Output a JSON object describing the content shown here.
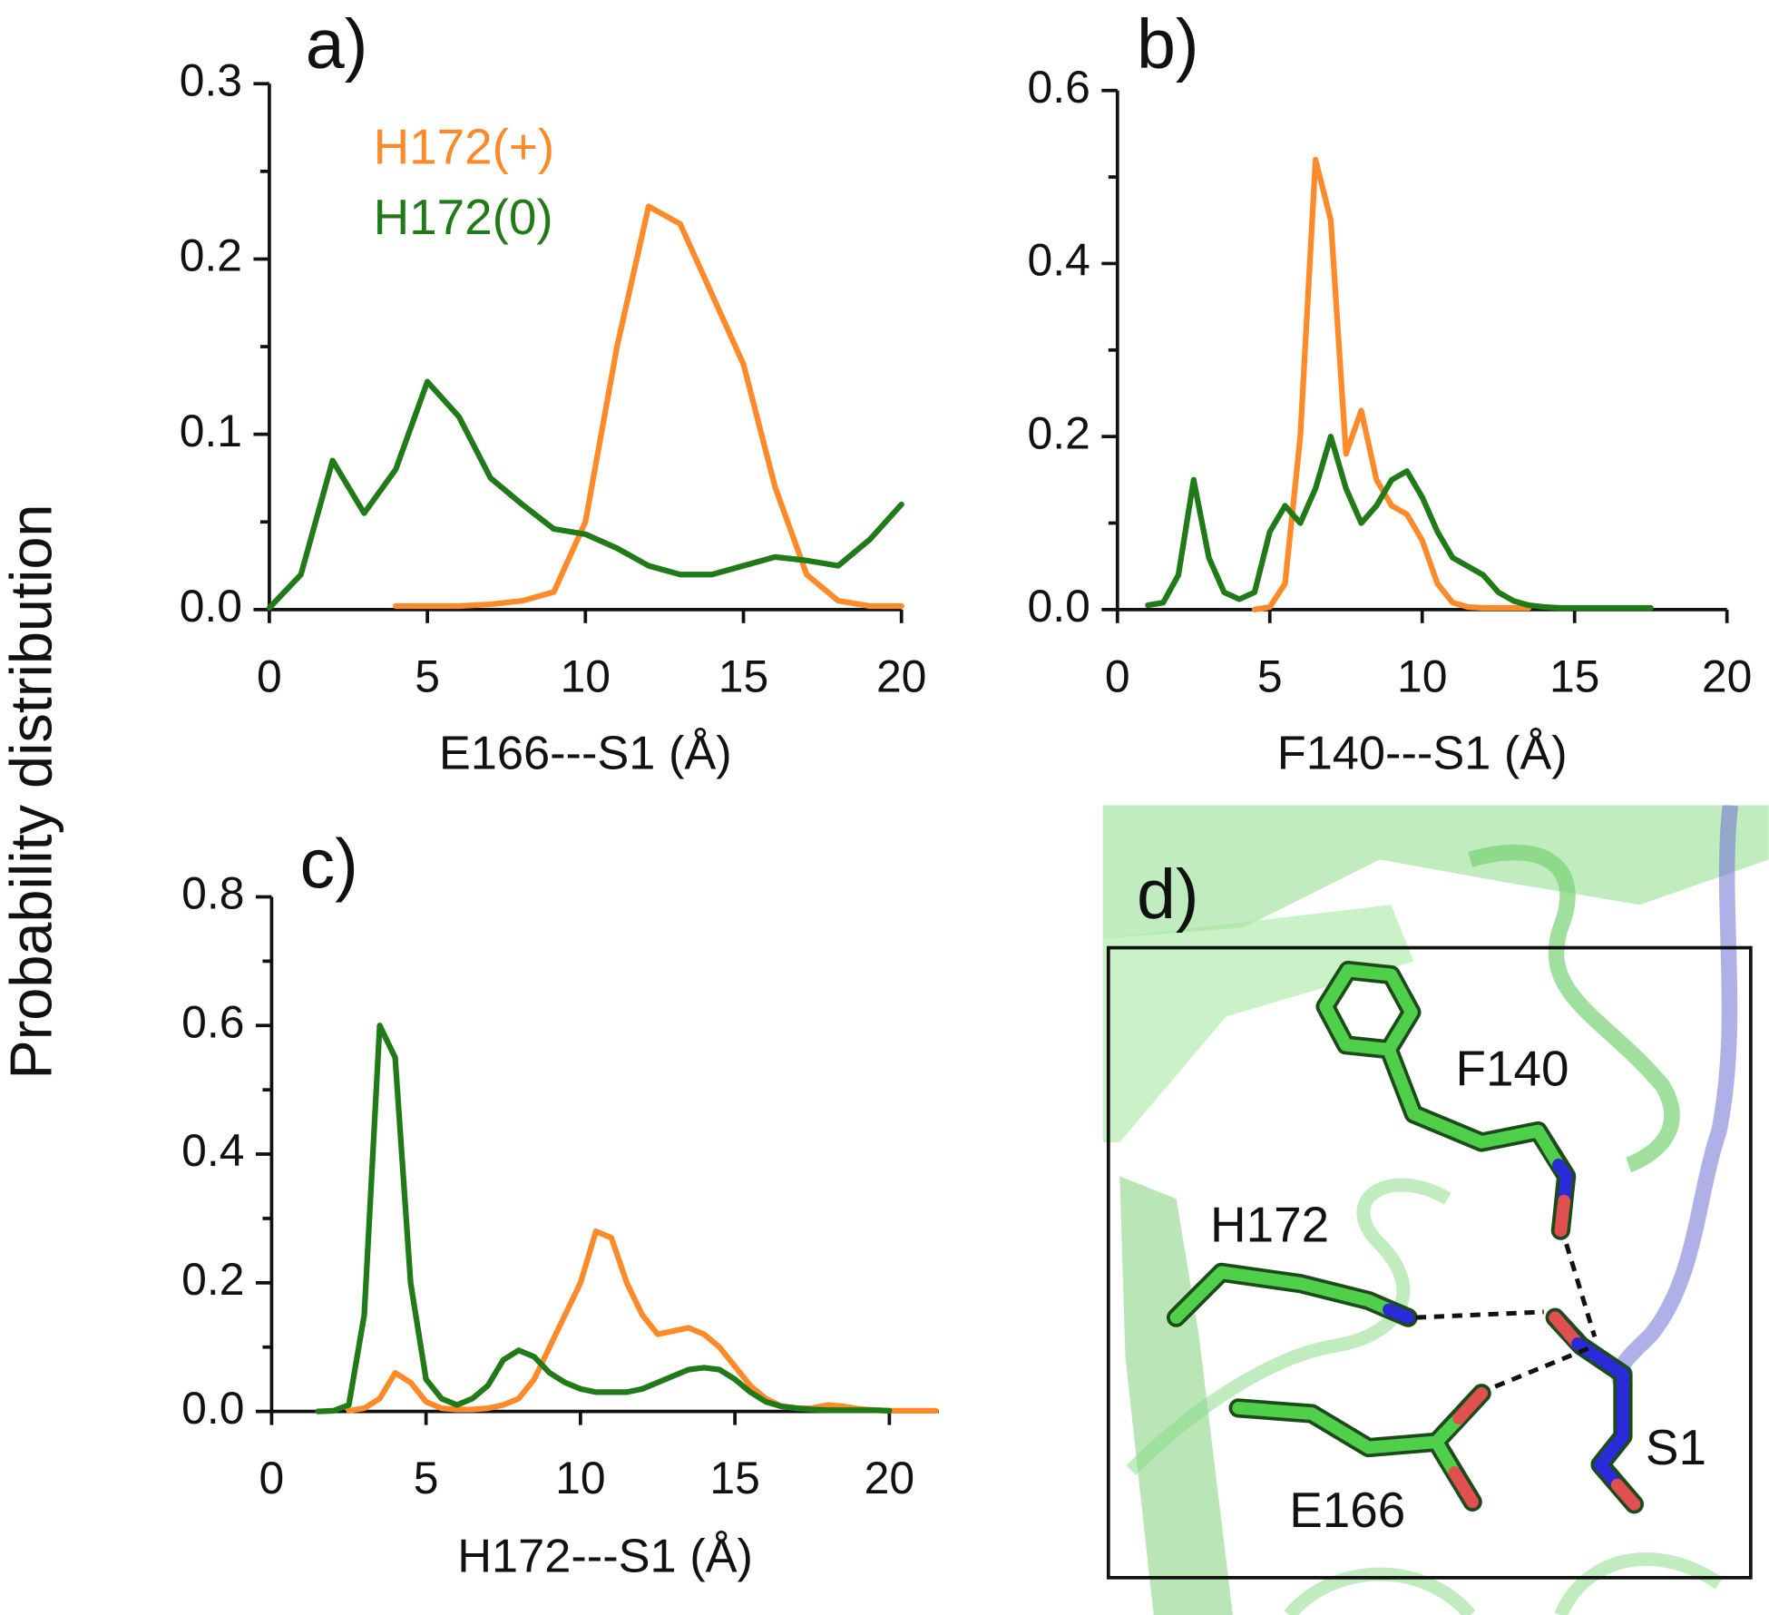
{
  "shared_ylabel": "Probability distribution",
  "chart_data": [
    {
      "type": "line",
      "title": "a)",
      "xlabel": "E166---S1 (Å)",
      "x": [
        0,
        1,
        2,
        3,
        4,
        5,
        6,
        7,
        8,
        9,
        10,
        11,
        12,
        13,
        14,
        15,
        16,
        17,
        18,
        19,
        20
      ],
      "xlim": [
        0,
        20
      ],
      "xticks": [
        0,
        5,
        10,
        15,
        20
      ],
      "ylim": [
        0,
        0.3
      ],
      "yticks": [
        {
          "value": 0,
          "label": "0.0"
        },
        0.1,
        0.2,
        0.3
      ],
      "yminorticks": [
        0.05,
        0.15,
        0.25
      ],
      "legend": "upper left",
      "series": [
        {
          "name": "H172(+)",
          "color": "#ff8a2a",
          "values": [
            null,
            null,
            null,
            null,
            0.002,
            0.002,
            0.002,
            0.003,
            0.005,
            0.01,
            0.05,
            0.15,
            0.23,
            0.22,
            0.18,
            0.14,
            0.07,
            0.02,
            0.005,
            0.002,
            0.002
          ]
        },
        {
          "name": "H172(0)",
          "color": "#1f7a17",
          "values": [
            0.001,
            0.02,
            0.085,
            0.055,
            0.08,
            0.13,
            0.11,
            0.075,
            0.06,
            0.046,
            0.043,
            0.035,
            0.025,
            0.02,
            0.02,
            0.025,
            0.03,
            0.028,
            0.025,
            0.04,
            0.06
          ]
        }
      ]
    },
    {
      "type": "line",
      "title": "b)",
      "xlabel": "F140---S1 (Å)",
      "x": [
        1,
        1.5,
        2,
        2.5,
        3,
        3.5,
        4,
        4.5,
        5,
        5.5,
        6,
        6.5,
        7,
        7.5,
        8,
        8.5,
        9,
        9.5,
        10,
        10.5,
        11,
        11.5,
        12,
        12.5,
        13,
        13.5,
        14,
        14.5,
        15,
        15.5,
        16,
        16.5,
        17,
        17.5
      ],
      "xlim": [
        0,
        20
      ],
      "xticks": [
        0,
        5,
        10,
        15,
        20
      ],
      "ylim": [
        0,
        0.6
      ],
      "yticks": [
        {
          "value": 0,
          "label": "0.0"
        },
        0.2,
        0.4,
        0.6
      ],
      "yminorticks": [
        0.1,
        0.3,
        0.5
      ],
      "series": [
        {
          "color": "#ff8a2a",
          "values": [
            null,
            null,
            null,
            null,
            null,
            null,
            null,
            0,
            0.003,
            0.03,
            0.2,
            0.52,
            0.45,
            0.18,
            0.23,
            0.15,
            0.12,
            0.11,
            0.08,
            0.03,
            0.008,
            0.003,
            0.002,
            0.002,
            0.002,
            0.002,
            null,
            null,
            null,
            null,
            null,
            null,
            null,
            null
          ]
        },
        {
          "color": "#1f7a17",
          "values": [
            0.005,
            0.008,
            0.04,
            0.15,
            0.06,
            0.02,
            0.012,
            0.02,
            0.09,
            0.12,
            0.1,
            0.14,
            0.2,
            0.14,
            0.1,
            0.12,
            0.15,
            0.16,
            0.13,
            0.09,
            0.06,
            0.05,
            0.04,
            0.02,
            0.01,
            0.005,
            0.003,
            0.002,
            0.002,
            0.002,
            0.002,
            0.002,
            0.002,
            0.002
          ]
        }
      ]
    },
    {
      "type": "line",
      "title": "c)",
      "xlabel": "H172---S1 (Å)",
      "x": [
        1.5,
        2,
        2.5,
        3,
        3.5,
        4,
        4.5,
        5,
        5.5,
        6,
        6.5,
        7,
        7.5,
        8,
        8.5,
        9,
        9.5,
        10,
        10.5,
        11,
        11.5,
        12,
        12.5,
        13,
        13.5,
        14,
        14.5,
        15,
        15.5,
        16,
        16.5,
        17,
        17.5,
        18,
        18.5,
        19,
        19.5,
        20,
        20.5,
        21,
        21.5
      ],
      "xlim": [
        0,
        21.6
      ],
      "xticks": [
        0,
        5,
        10,
        15,
        20
      ],
      "ylim": [
        0,
        0.8
      ],
      "yticks": [
        {
          "value": 0,
          "label": "0.0"
        },
        0.2,
        0.4,
        0.6,
        0.8
      ],
      "yminorticks": [
        0.1,
        0.3,
        0.5,
        0.7
      ],
      "series": [
        {
          "color": "#ff8a2a",
          "values": [
            null,
            null,
            0.001,
            0.005,
            0.02,
            0.06,
            0.045,
            0.015,
            0.005,
            0.003,
            0.003,
            0.005,
            0.01,
            0.02,
            0.05,
            0.1,
            0.15,
            0.2,
            0.28,
            0.27,
            0.2,
            0.15,
            0.12,
            0.125,
            0.13,
            0.12,
            0.1,
            0.07,
            0.04,
            0.02,
            0.008,
            0.005,
            0.005,
            0.01,
            0.008,
            0.004,
            0.002,
            0.001,
            0.001,
            0.001,
            0.001
          ]
        },
        {
          "color": "#1f7a17",
          "values": [
            0,
            0.001,
            0.01,
            0.15,
            0.6,
            0.55,
            0.2,
            0.05,
            0.02,
            0.01,
            0.02,
            0.04,
            0.08,
            0.095,
            0.085,
            0.06,
            0.045,
            0.035,
            0.03,
            0.03,
            0.03,
            0.035,
            0.045,
            0.055,
            0.065,
            0.068,
            0.065,
            0.05,
            0.03,
            0.015,
            0.008,
            0.005,
            0.003,
            0.002,
            0.002,
            0.002,
            0.002,
            0.001,
            null,
            null,
            null
          ]
        }
      ]
    }
  ],
  "molecular_view": {
    "panel_label": "d)",
    "labels": [
      "F140",
      "H172",
      "E166",
      "S1"
    ]
  }
}
